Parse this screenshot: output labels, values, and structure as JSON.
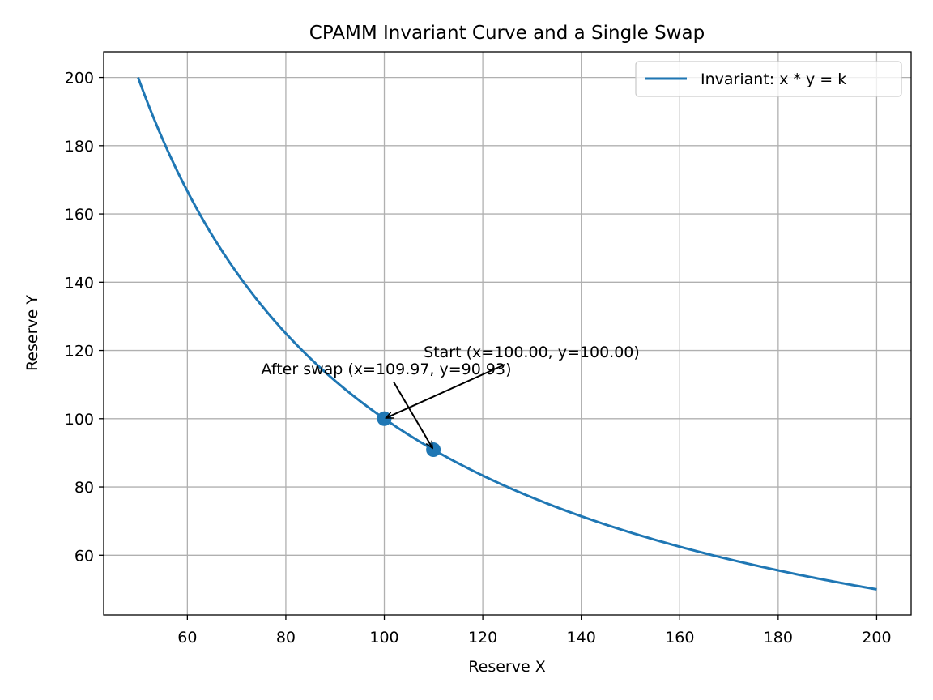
{
  "chart_data": {
    "type": "line",
    "title": "CPAMM Invariant Curve and a Single Swap",
    "xlabel": "Reserve X",
    "ylabel": "Reserve Y",
    "xlim": [
      43,
      207
    ],
    "ylim": [
      42.5,
      207.5
    ],
    "xticks": [
      60,
      80,
      100,
      120,
      140,
      160,
      180,
      200
    ],
    "yticks": [
      60,
      80,
      100,
      120,
      140,
      160,
      180,
      200
    ],
    "grid": true,
    "legend_position": "upper right",
    "series": [
      {
        "name": "Invariant: x * y = k",
        "color": "#1f77b4",
        "k": 10000,
        "x_range": [
          50,
          200
        ]
      }
    ],
    "points": [
      {
        "x": 100.0,
        "y": 100.0
      },
      {
        "x": 109.97,
        "y": 90.93
      }
    ],
    "point_color": "#1f77b4",
    "annotations": [
      {
        "text": "Start (x=100.00, y=100.00)",
        "target": {
          "x": 100.0,
          "y": 100.0
        },
        "text_pos": {
          "x": 108,
          "y": 118
        }
      },
      {
        "text": "After swap (x=109.97, y=90.93)",
        "target": {
          "x": 109.97,
          "y": 90.93
        },
        "text_pos": {
          "x": 75,
          "y": 113
        }
      }
    ]
  }
}
